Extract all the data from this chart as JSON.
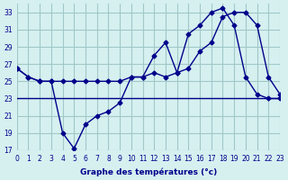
{
  "xlabel": "Graphe des températures (°c)",
  "bg_color": "#d6f0f0",
  "grid_color": "#a0c8c8",
  "line_color": "#00008b",
  "xlim": [
    0,
    23
  ],
  "ylim": [
    17,
    34
  ],
  "yticks": [
    17,
    19,
    21,
    23,
    25,
    27,
    29,
    31,
    33
  ],
  "xticks": [
    0,
    1,
    2,
    3,
    4,
    5,
    6,
    7,
    8,
    9,
    10,
    11,
    12,
    13,
    14,
    15,
    16,
    17,
    18,
    19,
    20,
    21,
    22,
    23
  ],
  "line1_x": [
    0,
    1,
    2,
    3,
    4,
    5,
    6,
    7,
    8,
    9,
    10,
    11,
    12,
    13,
    14,
    15,
    16,
    17,
    18,
    19,
    20,
    21,
    22,
    23
  ],
  "line1_y": [
    26.5,
    25.5,
    25,
    25,
    25,
    25,
    25,
    25,
    25,
    25,
    25.5,
    25.5,
    26,
    25.5,
    26,
    26.5,
    28.5,
    29.5,
    32.5,
    33,
    33,
    31.5,
    25.5,
    23.5
  ],
  "line2_x": [
    0,
    1,
    2,
    3,
    4,
    5,
    6,
    7,
    8,
    9,
    10,
    11,
    12,
    13,
    14,
    15,
    16,
    17,
    18,
    19,
    20,
    21,
    22,
    23
  ],
  "line2_y": [
    26.5,
    25.5,
    25,
    25,
    19,
    17.2,
    20,
    21,
    21.5,
    22.5,
    25.5,
    25.5,
    28,
    29.5,
    26,
    30.5,
    31.5,
    33,
    33.5,
    31.5,
    25.5,
    23.5,
    23,
    23
  ],
  "line3_x": [
    0,
    3,
    10,
    13,
    15,
    20,
    23
  ],
  "line3_y": [
    23,
    23,
    23,
    23,
    23,
    23,
    23
  ]
}
